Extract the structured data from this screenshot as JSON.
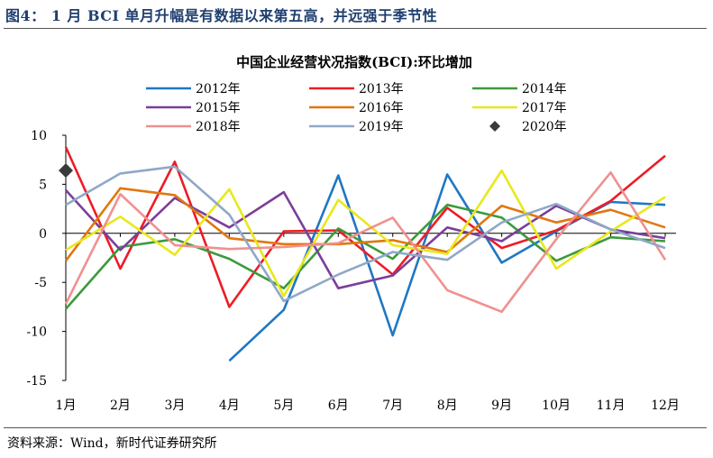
{
  "figure": {
    "title": "图4：  1 月 BCI 单月升幅是有数据以来第五高，并远强于季节性",
    "source": "资料来源：Wind，新时代证券研究所"
  },
  "chart_data": {
    "type": "line",
    "title": "中国企业经营状况指数(BCI):环比增加",
    "xlabel": "",
    "ylabel": "",
    "categories": [
      "1月",
      "2月",
      "3月",
      "4月",
      "5月",
      "6月",
      "7月",
      "8月",
      "9月",
      "10月",
      "11月",
      "12月"
    ],
    "ylim": [
      -15,
      10
    ],
    "yticks": [
      "10",
      "5",
      "0",
      "-5",
      "-10",
      "-15"
    ],
    "ytick_values": [
      10,
      5,
      0,
      -5,
      -10,
      -15
    ],
    "grid": false,
    "legend_position": "top",
    "series": [
      {
        "name": "2012年",
        "color": "#1f77c4",
        "values": [
          null,
          null,
          null,
          -13.0,
          -7.8,
          5.9,
          -10.4,
          6.0,
          -3.0,
          0.2,
          3.2,
          2.9
        ]
      },
      {
        "name": "2013年",
        "color": "#ee1c25",
        "values": [
          8.8,
          -3.6,
          7.3,
          -7.5,
          0.2,
          0.3,
          -4.2,
          2.6,
          -1.5,
          0.3,
          3.3,
          7.9
        ]
      },
      {
        "name": "2014年",
        "color": "#3c9a3c",
        "values": [
          -7.7,
          -1.4,
          -0.6,
          -2.6,
          -5.6,
          0.5,
          -2.6,
          2.9,
          1.6,
          -2.8,
          -0.4,
          -0.8
        ]
      },
      {
        "name": "2015年",
        "color": "#7b3f99",
        "values": [
          4.4,
          -1.7,
          3.6,
          0.6,
          4.2,
          -5.6,
          -4.3,
          0.6,
          -0.8,
          2.8,
          0.4,
          -0.5
        ]
      },
      {
        "name": "2016年",
        "color": "#e0780f",
        "values": [
          -2.8,
          4.6,
          3.9,
          -0.5,
          -1.1,
          -1.1,
          -0.7,
          -1.9,
          2.8,
          1.1,
          2.4,
          0.6
        ]
      },
      {
        "name": "2017年",
        "color": "#e8e81c",
        "values": [
          -1.7,
          1.7,
          -2.2,
          4.5,
          -6.4,
          3.4,
          -1.2,
          -2.1,
          6.4,
          -3.6,
          0.2,
          3.7
        ]
      },
      {
        "name": "2018年",
        "color": "#f09090",
        "values": [
          -7.2,
          4.0,
          -1.2,
          -1.6,
          -1.4,
          -1.0,
          1.6,
          -5.8,
          -8.0,
          -0.6,
          6.2,
          -2.7
        ]
      },
      {
        "name": "2019年",
        "color": "#8fa8c8",
        "values": [
          2.9,
          6.1,
          6.8,
          1.9,
          -6.9,
          -4.2,
          -1.9,
          -2.7,
          1.1,
          3.0,
          0.4,
          -1.5
        ]
      },
      {
        "name": "2020年",
        "color": "#3a3a3a",
        "marker": "diamond",
        "values": [
          6.4,
          null,
          null,
          null,
          null,
          null,
          null,
          null,
          null,
          null,
          null,
          null
        ]
      }
    ]
  }
}
